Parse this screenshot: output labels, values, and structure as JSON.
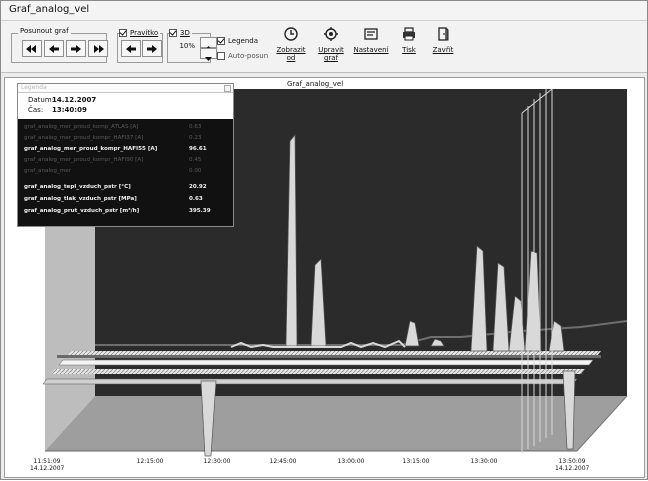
{
  "window": {
    "title": "Graf_analog_vel"
  },
  "toolbar": {
    "posunout_label": "Posunout graf",
    "pravitko_label": "Pravítko",
    "pravitko_checked": true,
    "three_d_label": "3D",
    "three_d_checked": true,
    "three_d_value": "10%",
    "legenda_label": "Legenda",
    "legenda_checked": true,
    "autoposun_label": "Auto-posun",
    "autoposun_checked": false,
    "buttons": [
      {
        "label": "Zobrazit\nod",
        "icon": "clock-icon"
      },
      {
        "label": "Upravit\ngraf",
        "icon": "gear-graph-icon"
      },
      {
        "label": "Nastavení",
        "icon": "settings-icon"
      },
      {
        "label": "Tisk",
        "icon": "printer-icon"
      },
      {
        "label": "Zavřít",
        "icon": "close-door-icon"
      }
    ]
  },
  "graph": {
    "title": "Graf_analog_vel"
  },
  "legend": {
    "title": "Legenda",
    "date_label": "Datum:",
    "date_value": "14.12.2007",
    "time_label": "Čas:",
    "time_value": "13:40:09",
    "rows": [
      {
        "name": "graf_analog_mer_proud_komp_ATLAS [A]",
        "value": "0.63",
        "dim": true
      },
      {
        "name": "graf_analog_mer_proud_kompr_HAFI37 [A]",
        "value": "0.23",
        "dim": true
      },
      {
        "name": "graf_analog_mer_proud_kompr_HAFI55 [A]",
        "value": "96.61",
        "dim": false
      },
      {
        "name": "graf_analog_mer_proud_kompr_HAFI90 [A]",
        "value": "0.45",
        "dim": true
      },
      {
        "name": "graf_analog_mer",
        "value": "0.00",
        "dim": true
      },
      {
        "name": "graf_analog_tepl_vzduch_pstr [°C]",
        "value": "20.92",
        "dim": false
      },
      {
        "name": "graf_analog_tlak_vzduch_pstr [MPa]",
        "value": "0.63",
        "dim": false
      },
      {
        "name": "graf_analog_prut_vzduch_pstr [m³/h]",
        "value": "395.39",
        "dim": false
      }
    ]
  },
  "x_axis": {
    "ticks": [
      {
        "line1": "11:51:09",
        "line2": "14.12.2007"
      },
      {
        "line1": "12:15:00",
        "line2": ""
      },
      {
        "line1": "12:30:00",
        "line2": ""
      },
      {
        "line1": "12:45:00",
        "line2": ""
      },
      {
        "line1": "13:00:00",
        "line2": ""
      },
      {
        "line1": "13:15:00",
        "line2": ""
      },
      {
        "line1": "13:30:00",
        "line2": ""
      },
      {
        "line1": "13:50:09",
        "line2": "14.12.2007"
      }
    ]
  },
  "colors": {
    "plot_bg": "#2a2a2a",
    "wall_bg": "#3a3a3a",
    "floor": "#9c9c9c",
    "side": "#bdbdbd"
  }
}
